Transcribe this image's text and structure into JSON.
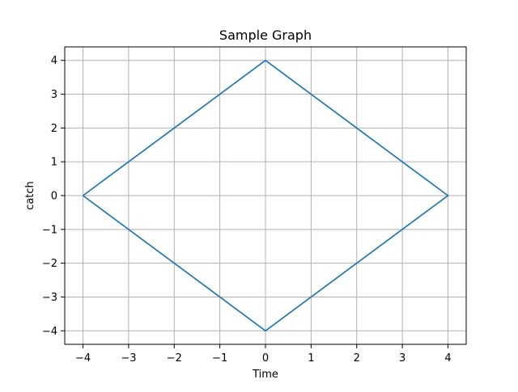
{
  "chart_data": {
    "type": "line",
    "title": "Sample Graph",
    "xlabel": "Time",
    "ylabel": "catch",
    "xlim": [
      -4.4,
      4.4
    ],
    "ylim": [
      -4.4,
      4.4
    ],
    "xticks": [
      -4,
      -3,
      -2,
      -1,
      0,
      1,
      2,
      3,
      4
    ],
    "yticks": [
      -4,
      -3,
      -2,
      -1,
      0,
      1,
      2,
      3,
      4
    ],
    "xtick_labels": [
      "−4",
      "−3",
      "−2",
      "−1",
      "0",
      "1",
      "2",
      "3",
      "4"
    ],
    "ytick_labels": [
      "−4",
      "−3",
      "−2",
      "−1",
      "0",
      "1",
      "2",
      "3",
      "4"
    ],
    "grid": true,
    "series": [
      {
        "color": "#1f77b4",
        "x": [
          -4,
          0,
          4,
          0,
          -4
        ],
        "y": [
          0,
          4,
          0,
          -4,
          0
        ]
      }
    ]
  }
}
